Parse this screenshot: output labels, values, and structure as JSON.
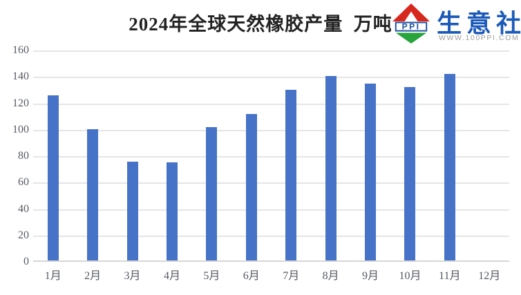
{
  "header": {
    "logo": {
      "ppi_text": "PPI",
      "brand_text": "生意社",
      "website": "WWW.100PPI.COM",
      "colors": {
        "red": "#D7281E",
        "green": "#27A43C",
        "ppi_blue": "#1E4FA0",
        "brand_blue": "#1B5AB8",
        "website_gray": "#9C9C9C"
      }
    }
  },
  "chart_data": {
    "type": "bar",
    "title": "2024年全球天然橡胶产量  万吨",
    "unit": "万吨",
    "categories": [
      "1月",
      "2月",
      "3月",
      "4月",
      "5月",
      "6月",
      "7月",
      "8月",
      "9月",
      "10月",
      "11月",
      "12月"
    ],
    "values": [
      125,
      99.5,
      75,
      74.5,
      101,
      111,
      129,
      139.5,
      134,
      131.5,
      141,
      null
    ],
    "xlabel": "",
    "ylabel": "",
    "ylim": [
      0,
      160
    ],
    "yticks": [
      0,
      20,
      40,
      60,
      80,
      100,
      120,
      140,
      160
    ],
    "grid": true,
    "legend": "none",
    "bar_color": "#4673C8",
    "gridline_color": "#E5E5E5",
    "axis_label_color": "#545962"
  }
}
